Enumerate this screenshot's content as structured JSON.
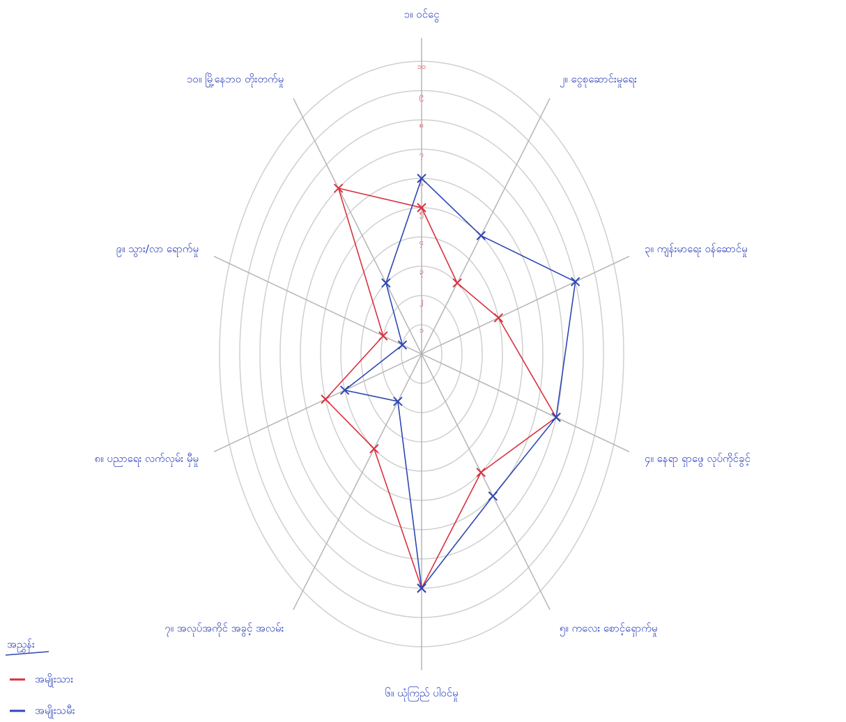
{
  "chart_data": {
    "type": "radar",
    "categories": [
      "၁။ ဝင်ငွေ",
      "၂။ ငွေစုဆောင်းမှုရေး",
      "၃။ ကျန်းမာရေး ဝန်ဆောင်မှု",
      "၄။ နေရာ ရှာဖွေ လုပ်ကိုင်ခွင့်",
      "၅။ ကလေး စောင့်ရှောက်မှု",
      "၆။ ယုံကြည် ပါဝင်မှု",
      "၇။ အလုပ်အကိုင် အခွင့် အလမ်း",
      "၈။ ပညာရေး လက်လှမ်း မှီမှု",
      "၉။ သွား/လာ ရောက်မှု",
      "၁၀။ မြို့နေဘဝ တိုးတက်မှု"
    ],
    "series": [
      {
        "name": "အမျိုးသား",
        "color": "#d9303f",
        "values": [
          5,
          3,
          4,
          7,
          5,
          8,
          4,
          5,
          2,
          7
        ]
      },
      {
        "name": "အမျိုးသမီး",
        "color": "#2e47b3",
        "values": [
          6,
          5,
          8,
          7,
          6,
          8,
          2,
          4,
          1,
          3
        ]
      }
    ],
    "legend_title": "အညွှန်း",
    "rlim": [
      0,
      10
    ],
    "rticks": [
      {
        "value": 1,
        "label": "၁"
      },
      {
        "value": 2,
        "label": "၂"
      },
      {
        "value": 3,
        "label": "၃"
      },
      {
        "value": 4,
        "label": "၄"
      },
      {
        "value": 5,
        "label": "၅"
      },
      {
        "value": 6,
        "label": "၆"
      },
      {
        "value": 7,
        "label": "၇"
      },
      {
        "value": 8,
        "label": "၈"
      },
      {
        "value": 9,
        "label": "၉"
      },
      {
        "value": 10,
        "label": "၁၀"
      }
    ],
    "grid": true
  }
}
